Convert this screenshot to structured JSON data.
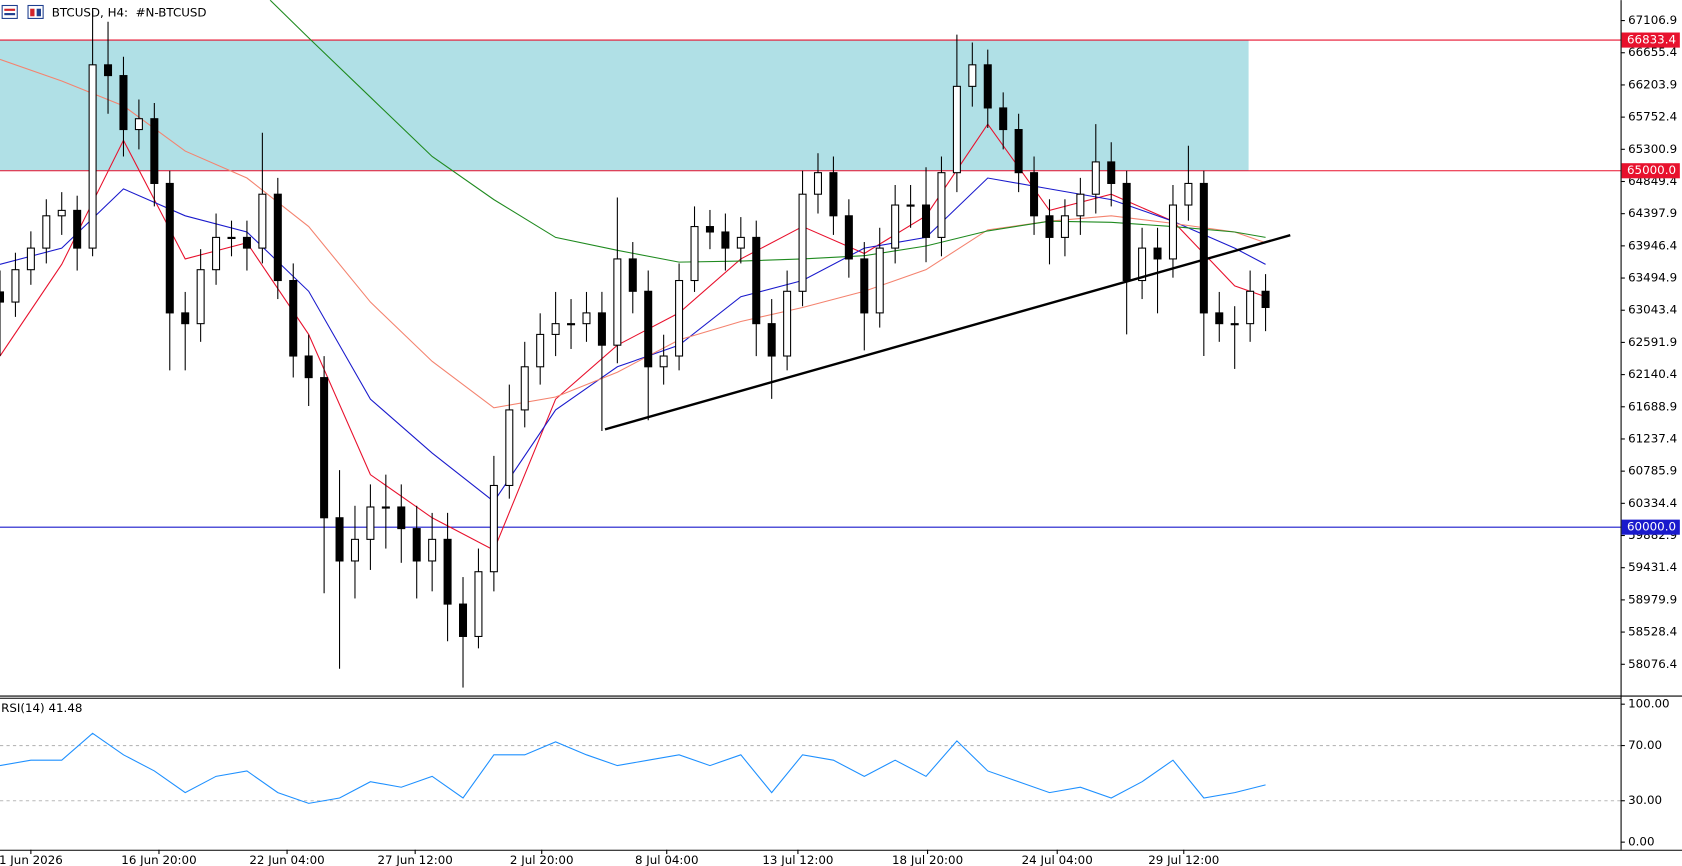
{
  "chart_data": [
    {
      "type": "candlestick",
      "title": "BTCUSD, H4:  #N-BTCUSD",
      "xlim": [
        0,
        105
      ],
      "ylim": [
        57638,
        67394
      ],
      "yticks": [
        67106.9,
        66655.4,
        66203.9,
        65752.4,
        65300.9,
        64849.4,
        64397.9,
        63946.4,
        63494.9,
        63043.4,
        62591.9,
        62140.4,
        61688.9,
        61237.4,
        60785.9,
        60334.4,
        59882.9,
        59431.4,
        58979.9,
        58528.4,
        58076.4
      ],
      "xticks": [
        {
          "value": 2,
          "label": "1 Jun 2026"
        },
        {
          "value": 10.3,
          "label": "16 Jun 20:00"
        },
        {
          "value": 18.6,
          "label": "22 Jun 04:00"
        },
        {
          "value": 26.9,
          "label": "27 Jun 12:00"
        },
        {
          "value": 35.1,
          "label": "2 Jul 20:00"
        },
        {
          "value": 43.2,
          "label": "8 Jul 04:00"
        },
        {
          "value": 51.7,
          "label": "13 Jul 12:00"
        },
        {
          "value": 60.1,
          "label": "18 Jul 20:00"
        },
        {
          "value": 68.5,
          "label": "24 Jul 04:00"
        },
        {
          "value": 76.7,
          "label": "29 Jul 12:00"
        }
      ],
      "candles": {
        "open": [
          63300,
          63158,
          63612,
          63915,
          64368,
          64444,
          63915,
          66486,
          66335,
          65578,
          65730,
          64822,
          63006,
          62855,
          63612,
          64065,
          64065,
          63915,
          64671,
          63460,
          62401,
          62098,
          60132,
          59526,
          59829,
          60283,
          60283,
          59980,
          59526,
          59829,
          58921,
          58467,
          59375,
          60585,
          61645,
          62250,
          62704,
          62855,
          62855,
          63006,
          62553,
          63763,
          63309,
          62250,
          62401,
          63460,
          64217,
          64141,
          63915,
          64065,
          62855,
          62401,
          63309,
          64671,
          64973,
          64368,
          63763,
          63006,
          63915,
          64519,
          64519,
          64065,
          64973,
          66184,
          66486,
          65881,
          65578,
          64973,
          64368,
          64065,
          64368,
          64671,
          65124,
          64822,
          63460,
          63915,
          63763,
          64519,
          64822,
          63006,
          62855,
          62855,
          63309
        ],
        "high": [
          63600,
          63850,
          64150,
          64600,
          64700,
          64650,
          67243,
          67091,
          66600,
          66000,
          65950,
          65000,
          63300,
          63900,
          64400,
          64300,
          64300,
          65533,
          64900,
          63700,
          62700,
          62400,
          60800,
          60300,
          60600,
          60737,
          60600,
          60300,
          60200,
          60200,
          59300,
          59700,
          61000,
          62000,
          62600,
          63000,
          63300,
          63200,
          63300,
          63300,
          64625,
          64000,
          63600,
          62700,
          63700,
          64500,
          64450,
          64400,
          64350,
          64300,
          63200,
          63600,
          65000,
          65246,
          65200,
          64600,
          64000,
          64200,
          64800,
          64800,
          65049,
          65200,
          66910,
          66800,
          66700,
          66100,
          65800,
          65200,
          64600,
          64600,
          64900,
          65654,
          65400,
          65000,
          64200,
          64200,
          64800,
          65351,
          65000,
          63300,
          63100,
          63600,
          63550
        ],
        "low": [
          62400,
          62950,
          63400,
          63700,
          64100,
          63600,
          63800,
          65800,
          65200,
          65300,
          64500,
          62200,
          62200,
          62600,
          63400,
          63800,
          63600,
          63700,
          63200,
          62100,
          61700,
          59073,
          58013,
          59000,
          59400,
          59700,
          59500,
          59000,
          59100,
          58400,
          57750,
          58300,
          59100,
          60400,
          61400,
          62000,
          62400,
          62500,
          62600,
          61350,
          62300,
          63000,
          61500,
          62000,
          62200,
          63300,
          63900,
          63600,
          63700,
          62400,
          61800,
          62200,
          63100,
          64400,
          64100,
          63500,
          62480,
          62800,
          63700,
          64200,
          63717,
          63800,
          64700,
          65900,
          65600,
          65300,
          64700,
          64100,
          63687,
          63800,
          64100,
          64400,
          64500,
          62704,
          63200,
          63000,
          63500,
          64300,
          62401,
          62600,
          62220,
          62600,
          62750
        ],
        "close": [
          63158,
          63612,
          63915,
          64368,
          64444,
          63915,
          66486,
          66335,
          65578,
          65730,
          64822,
          63006,
          62855,
          63612,
          64065,
          64065,
          63915,
          64671,
          63460,
          62401,
          62098,
          60132,
          59526,
          59829,
          60283,
          60283,
          59980,
          59526,
          59829,
          58921,
          58467,
          59375,
          60585,
          61645,
          62250,
          62704,
          62855,
          62855,
          63006,
          62553,
          63763,
          63309,
          62250,
          62401,
          63460,
          64217,
          64141,
          63915,
          64065,
          62855,
          62401,
          63309,
          64671,
          64973,
          64368,
          63763,
          63006,
          63915,
          64519,
          64519,
          64065,
          64973,
          66184,
          66486,
          65881,
          65578,
          64973,
          64368,
          64065,
          64368,
          64671,
          65124,
          64822,
          63460,
          63915,
          63763,
          64519,
          64822,
          63006,
          62855,
          62855,
          63309,
          63082
        ]
      },
      "up_color": "#ffffff",
      "down_color": "#000000",
      "edge_color": "#000000",
      "zone": {
        "from": 65000,
        "to": 66833.4,
        "x_end": 80.9,
        "color": "#b0e0e6"
      },
      "levels": [
        {
          "value": 66833.4,
          "color": "#e8112d"
        },
        {
          "value": 65000,
          "label": "65000.0",
          "color": "#e8112d"
        },
        {
          "value": 60000,
          "label": "60000.0",
          "color": "#1a1acc"
        }
      ],
      "overlays": [
        {
          "color": "#e8112d",
          "x": [
            0,
            4,
            8,
            12,
            16,
            20,
            24,
            28,
            32,
            36,
            40,
            44,
            48,
            52,
            56,
            60,
            64,
            68,
            72,
            76,
            80,
            82
          ],
          "values": [
            62401,
            63687,
            65427,
            63763,
            63990,
            62704,
            60737,
            60132,
            59678,
            61796,
            62553,
            63006,
            63763,
            64217,
            63839,
            64368,
            65654,
            64444,
            64671,
            64292,
            63385,
            63233
          ]
        },
        {
          "color": "#1a1acc",
          "x": [
            0,
            4,
            8,
            12,
            16,
            20,
            24,
            28,
            32,
            36,
            40,
            44,
            48,
            52,
            56,
            60,
            64,
            68,
            72,
            76,
            80,
            82
          ],
          "values": [
            63687,
            63915,
            64746,
            64368,
            64141,
            63309,
            61796,
            61040,
            60359,
            61645,
            62250,
            62553,
            63233,
            63460,
            63915,
            64065,
            64898,
            64746,
            64595,
            64292,
            63915,
            63687
          ]
        },
        {
          "color": "#f4836f",
          "x": [
            0,
            4,
            8,
            12,
            16,
            20,
            24,
            28,
            32,
            36,
            40,
            44,
            48,
            52,
            56,
            60,
            64,
            68,
            72,
            76,
            80,
            82
          ],
          "values": [
            66562,
            66259,
            65911,
            65276,
            64898,
            64217,
            63158,
            62326,
            61675,
            61826,
            62174,
            62628,
            62885,
            63082,
            63309,
            63612,
            64171,
            64292,
            64368,
            64262,
            64141,
            63990
          ]
        },
        {
          "color": "#1f8a1f",
          "x": [
            17.5,
            20,
            24,
            28,
            32,
            36,
            40,
            44,
            48,
            52,
            56,
            60,
            64,
            68,
            72,
            76,
            80,
            82
          ],
          "values": [
            67394,
            66864,
            66032,
            65200,
            64595,
            64065,
            63884,
            63718,
            63733,
            63763,
            63808,
            63944,
            64156,
            64292,
            64277,
            64217,
            64141,
            64065
          ]
        }
      ],
      "trendline": {
        "x": [
          39.2,
          83.6
        ],
        "values": [
          61372,
          64096
        ],
        "color": "#000000"
      }
    },
    {
      "type": "line",
      "label": "RSI(14) 41.48",
      "xlim": [
        0,
        105
      ],
      "ylim": [
        -5.5,
        104.7
      ],
      "yticks": [
        {
          "value": 100,
          "label": "100.00"
        },
        {
          "value": 70,
          "label": "70.00"
        },
        {
          "value": 30,
          "label": "30.00"
        },
        {
          "value": 0,
          "label": "0.00"
        }
      ],
      "levels": [
        70,
        30
      ],
      "color": "#1e90ff",
      "x": [
        0,
        2,
        4,
        6,
        8,
        10,
        12,
        14,
        16,
        18,
        20,
        22,
        24,
        26,
        28,
        30,
        32,
        34,
        36,
        38,
        40,
        42,
        44,
        46,
        48,
        50,
        52,
        54,
        56,
        58,
        60,
        62,
        64,
        66,
        68,
        70,
        72,
        74,
        76,
        78,
        80,
        82
      ],
      "values": [
        55.5,
        59.4,
        59.4,
        78.9,
        63.3,
        51.6,
        35.9,
        47.7,
        51.6,
        35.9,
        28.1,
        32.0,
        43.8,
        39.8,
        47.7,
        32.0,
        63.3,
        63.3,
        72.7,
        63.3,
        55.5,
        59.4,
        63.3,
        55.5,
        63.3,
        35.9,
        63.3,
        59.4,
        47.7,
        59.4,
        47.7,
        73.4,
        51.6,
        43.8,
        35.9,
        39.8,
        32.0,
        43.8,
        59.4,
        32.0,
        35.9,
        41.5
      ]
    }
  ]
}
